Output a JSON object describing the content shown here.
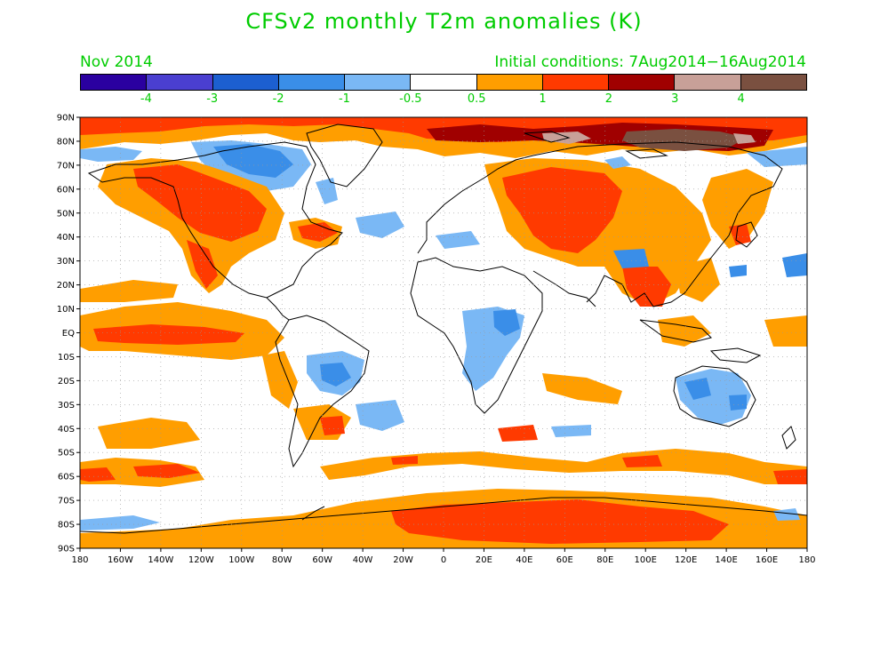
{
  "title": "CFSv2 monthly T2m anomalies (K)",
  "period_label": "Nov 2014",
  "initial_conditions": "Initial conditions: 7Aug2014−16Aug2014",
  "colorbar": {
    "levels": [
      "-4",
      "-3",
      "-2",
      "-1",
      "-0.5",
      "0.5",
      "1",
      "2",
      "3",
      "4"
    ],
    "colors": [
      "#2a00a0",
      "#4a3fd0",
      "#1c5fd0",
      "#3a8ee8",
      "#7ab8f5",
      "#ffffff",
      "#ff9e00",
      "#ff3a00",
      "#a00000",
      "#c8a098",
      "#7a5040"
    ]
  },
  "map": {
    "lat_labels": [
      "90N",
      "80N",
      "70N",
      "60N",
      "50N",
      "40N",
      "30N",
      "20N",
      "10N",
      "EQ",
      "10S",
      "20S",
      "30S",
      "40S",
      "50S",
      "60S",
      "70S",
      "80S",
      "90S"
    ],
    "lon_labels": [
      "180",
      "160W",
      "140W",
      "120W",
      "100W",
      "80W",
      "60W",
      "40W",
      "20W",
      "0",
      "20E",
      "40E",
      "60E",
      "80E",
      "100E",
      "120E",
      "140E",
      "160E",
      "180"
    ]
  }
}
